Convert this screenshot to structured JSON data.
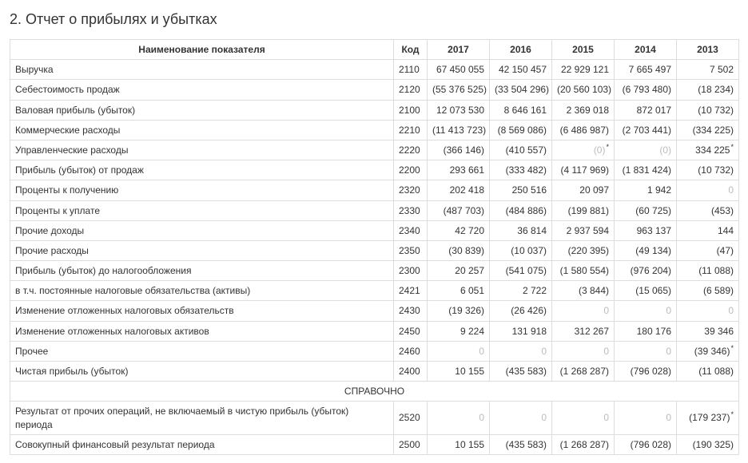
{
  "title": "2. Отчет о прибылях и убытках",
  "headers": {
    "name": "Наименование показателя",
    "code": "Код",
    "years": [
      "2017",
      "2016",
      "2015",
      "2014",
      "2013"
    ]
  },
  "section_header": "СПРАВОЧНО",
  "rows": [
    {
      "name": "Выручка",
      "code": "2110",
      "y": [
        "67 450 055",
        "42 150 457",
        "22 929 121",
        "7 665 497",
        "7 502"
      ]
    },
    {
      "name": "Себестоимость продаж",
      "code": "2120",
      "y": [
        {
          "v": "(55 376 525)",
          "p": true
        },
        {
          "v": "(33 504 296)",
          "p": true
        },
        {
          "v": "(20 560 103)",
          "p": true
        },
        {
          "v": "(6 793 480)",
          "p": true
        },
        {
          "v": "(18 234)",
          "p": true
        }
      ]
    },
    {
      "name": "Валовая прибыль (убыток)",
      "code": "2100",
      "y": [
        "12 073 530",
        "8 646 161",
        "2 369 018",
        "872 017",
        {
          "v": "(10 732)",
          "p": true
        }
      ]
    },
    {
      "name": "Коммерческие расходы",
      "code": "2210",
      "y": [
        {
          "v": "(11 413 723)",
          "p": true
        },
        {
          "v": "(8 569 086)",
          "p": true
        },
        {
          "v": "(6 486 987)",
          "p": true
        },
        {
          "v": "(2 703 441)",
          "p": true
        },
        {
          "v": "(334 225)",
          "p": true
        }
      ]
    },
    {
      "name": "Управленческие расходы",
      "code": "2220",
      "y": [
        {
          "v": "(366 146)",
          "p": true
        },
        {
          "v": "(410 557)",
          "p": true
        },
        {
          "v": "(0)",
          "p": true,
          "star": true,
          "dim": true
        },
        {
          "v": "(0)",
          "p": true,
          "dim": true
        },
        {
          "v": "334 225",
          "star": true
        }
      ]
    },
    {
      "name": "Прибыль (убыток) от продаж",
      "code": "2200",
      "y": [
        "293 661",
        {
          "v": "(333 482)",
          "p": true
        },
        {
          "v": "(4 117 969)",
          "p": true
        },
        {
          "v": "(1 831 424)",
          "p": true
        },
        {
          "v": "(10 732)",
          "p": true
        }
      ]
    },
    {
      "name": "Проценты к получению",
      "code": "2320",
      "y": [
        "202 418",
        "250 516",
        "20 097",
        "1 942",
        {
          "v": "0",
          "dim": true
        }
      ]
    },
    {
      "name": "Проценты к уплате",
      "code": "2330",
      "y": [
        {
          "v": "(487 703)",
          "p": true
        },
        {
          "v": "(484 886)",
          "p": true
        },
        {
          "v": "(199 881)",
          "p": true
        },
        {
          "v": "(60 725)",
          "p": true
        },
        {
          "v": "(453)",
          "p": true
        }
      ]
    },
    {
      "name": "Прочие доходы",
      "code": "2340",
      "y": [
        "42 720",
        "36 814",
        "2 937 594",
        "963 137",
        "144"
      ]
    },
    {
      "name": "Прочие расходы",
      "code": "2350",
      "y": [
        {
          "v": "(30 839)",
          "p": true
        },
        {
          "v": "(10 037)",
          "p": true
        },
        {
          "v": "(220 395)",
          "p": true
        },
        {
          "v": "(49 134)",
          "p": true
        },
        {
          "v": "(47)",
          "p": true
        }
      ]
    },
    {
      "name": "Прибыль (убыток) до налогообложения",
      "code": "2300",
      "y": [
        "20 257",
        {
          "v": "(541 075)",
          "p": true
        },
        {
          "v": "(1 580 554)",
          "p": true
        },
        {
          "v": "(976 204)",
          "p": true
        },
        {
          "v": "(11 088)",
          "p": true
        }
      ]
    },
    {
      "name": "в т.ч. постоянные налоговые обязательства (активы)",
      "code": "2421",
      "y": [
        "6 051",
        "2 722",
        {
          "v": "(3 844)",
          "p": true
        },
        {
          "v": "(15 065)",
          "p": true
        },
        {
          "v": "(6 589)",
          "p": true
        }
      ]
    },
    {
      "name": "Изменение отложенных налоговых обязательств",
      "code": "2430",
      "y": [
        {
          "v": "(19 326)",
          "p": true
        },
        {
          "v": "(26 426)",
          "p": true
        },
        {
          "v": "0",
          "dim": true
        },
        {
          "v": "0",
          "dim": true
        },
        {
          "v": "0",
          "dim": true
        }
      ]
    },
    {
      "name": "Изменение отложенных налоговых активов",
      "code": "2450",
      "y": [
        "9 224",
        "131 918",
        "312 267",
        "180 176",
        "39 346"
      ]
    },
    {
      "name": "Прочее",
      "code": "2460",
      "y": [
        {
          "v": "0",
          "dim": true
        },
        {
          "v": "0",
          "dim": true
        },
        {
          "v": "0",
          "dim": true
        },
        {
          "v": "0",
          "dim": true
        },
        {
          "v": "(39 346)",
          "p": true,
          "star": true
        }
      ]
    },
    {
      "name": "Чистая прибыль (убыток)",
      "code": "2400",
      "y": [
        "10 155",
        {
          "v": "(435 583)",
          "p": true
        },
        {
          "v": "(1 268 287)",
          "p": true
        },
        {
          "v": "(796 028)",
          "p": true
        },
        {
          "v": "(11 088)",
          "p": true
        }
      ]
    }
  ],
  "rows_ref": [
    {
      "name": "Результат от прочих операций, не включаемый в чистую прибыль (убыток) периода",
      "code": "2520",
      "y": [
        {
          "v": "0",
          "dim": true
        },
        {
          "v": "0",
          "dim": true
        },
        {
          "v": "0",
          "dim": true
        },
        {
          "v": "0",
          "dim": true
        },
        {
          "v": "(179 237)",
          "p": true,
          "star": true
        }
      ]
    },
    {
      "name": "Совокупный финансовый результат периода",
      "code": "2500",
      "y": [
        "10 155",
        {
          "v": "(435 583)",
          "p": true
        },
        {
          "v": "(1 268 287)",
          "p": true
        },
        {
          "v": "(796 028)",
          "p": true
        },
        {
          "v": "(190 325)",
          "p": true
        }
      ]
    }
  ],
  "style": {
    "text_color": "#333333",
    "border_color": "#dddddd",
    "dim_color": "#bbbbbb",
    "background": "#ffffff",
    "title_fontsize": 18,
    "body_fontsize": 12
  }
}
